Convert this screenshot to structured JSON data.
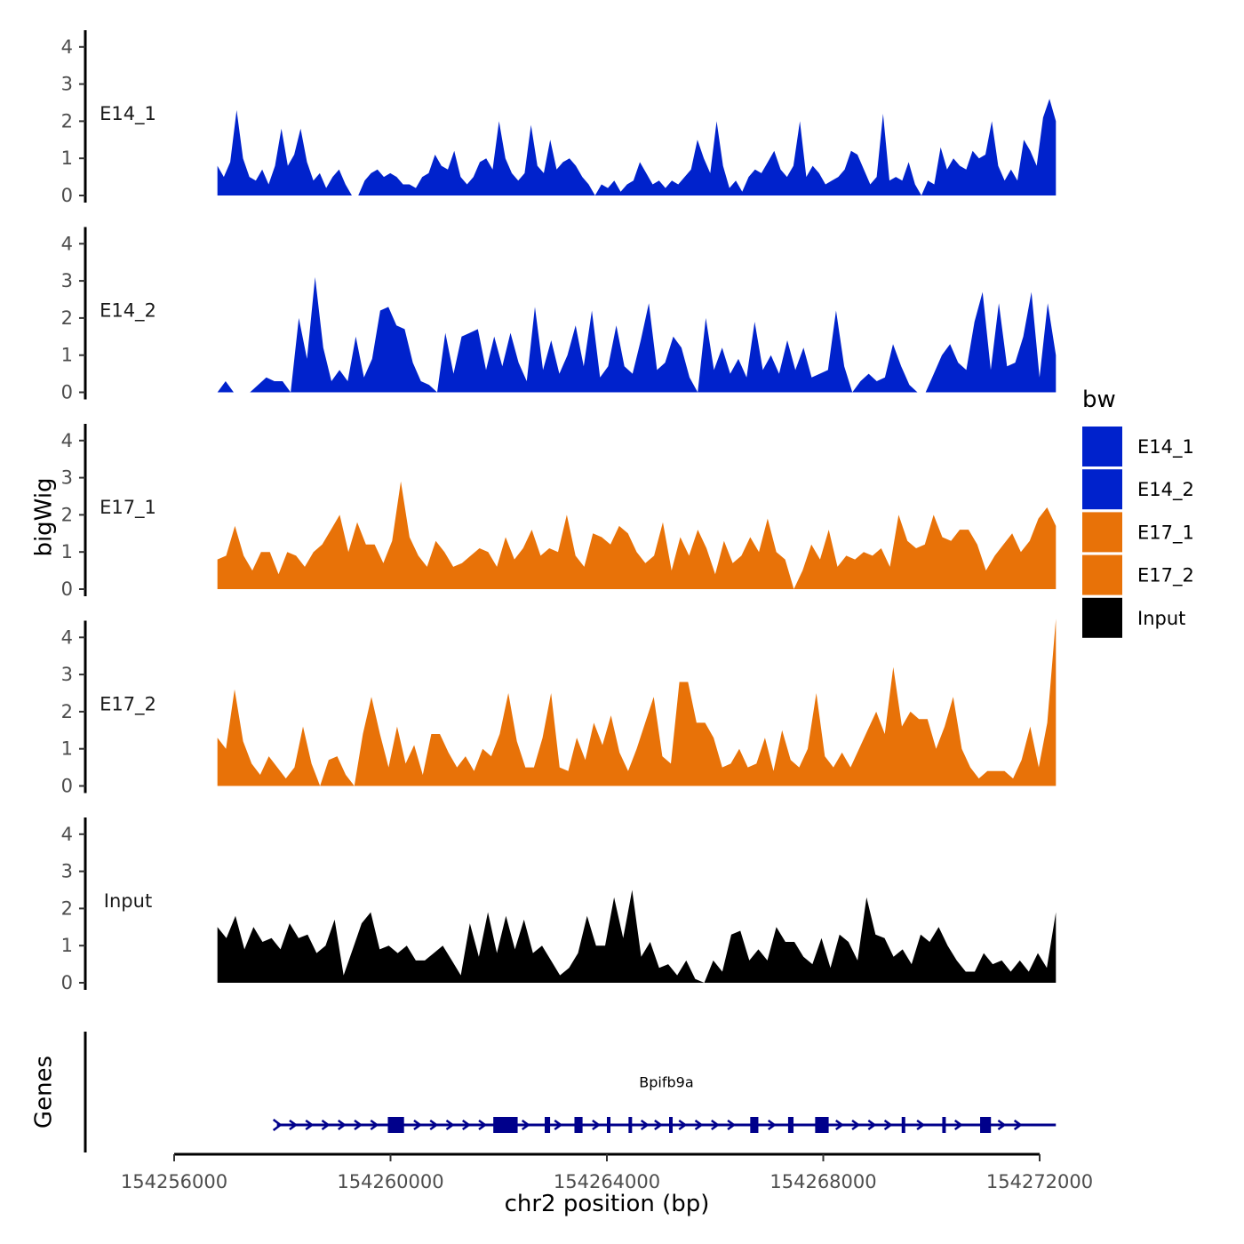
{
  "chart_data": {
    "type": "area",
    "ylabel": "bigWig",
    "xlabel": "chr2 position (bp)",
    "gene_track_label": "Genes",
    "xlim": [
      154256000,
      154272000
    ],
    "data_range": [
      154256800,
      154272300
    ],
    "x_ticks": [
      154256000,
      154260000,
      154264000,
      154268000,
      154272000
    ],
    "x_tick_labels": [
      "154256000",
      "154260000",
      "154264000",
      "154268000",
      "154272000"
    ],
    "ylim": [
      0,
      4.5
    ],
    "y_ticks": [
      0,
      1,
      2,
      3,
      4
    ],
    "y_tick_labels": [
      "0",
      "1",
      "2",
      "3",
      "4"
    ],
    "legend": {
      "title": "bw",
      "position": "right",
      "entries": [
        {
          "label": "E14_1",
          "color": "#0022CC"
        },
        {
          "label": "E14_2",
          "color": "#0022CC"
        },
        {
          "label": "E17_1",
          "color": "#E87208"
        },
        {
          "label": "E17_2",
          "color": "#E87208"
        },
        {
          "label": "Input",
          "color": "#000000"
        }
      ]
    },
    "series": [
      {
        "name": "E14_1",
        "color": "#0022CC",
        "values": [
          0.8,
          0.5,
          0.9,
          2.3,
          1.0,
          0.5,
          0.4,
          0.7,
          0.3,
          0.8,
          1.8,
          0.8,
          1.1,
          1.8,
          0.9,
          0.4,
          0.6,
          0.2,
          0.5,
          0.7,
          0.3,
          0.0,
          0.0,
          0.4,
          0.6,
          0.7,
          0.5,
          0.6,
          0.5,
          0.3,
          0.3,
          0.2,
          0.5,
          0.6,
          1.1,
          0.8,
          0.7,
          1.2,
          0.5,
          0.3,
          0.5,
          0.9,
          1.0,
          0.7,
          2.0,
          1.0,
          0.6,
          0.4,
          0.6,
          1.9,
          0.8,
          0.6,
          1.5,
          0.7,
          0.9,
          1.0,
          0.8,
          0.5,
          0.3,
          0.0,
          0.3,
          0.2,
          0.4,
          0.1,
          0.3,
          0.4,
          0.9,
          0.6,
          0.3,
          0.4,
          0.2,
          0.4,
          0.3,
          0.5,
          0.7,
          1.5,
          1.0,
          0.6,
          2.0,
          0.8,
          0.2,
          0.4,
          0.1,
          0.5,
          0.7,
          0.6,
          0.9,
          1.2,
          0.7,
          0.5,
          0.8,
          2.0,
          0.5,
          0.8,
          0.6,
          0.3,
          0.4,
          0.5,
          0.7,
          1.2,
          1.1,
          0.7,
          0.3,
          0.5,
          2.2,
          0.4,
          0.5,
          0.4,
          0.9,
          0.3,
          0.0,
          0.4,
          0.3,
          1.3,
          0.7,
          1.0,
          0.8,
          0.7,
          1.2,
          1.0,
          1.1,
          2.0,
          0.8,
          0.4,
          0.7,
          0.4,
          1.5,
          1.2,
          0.8,
          2.1,
          2.6,
          2.0
        ]
      },
      {
        "name": "E14_2",
        "color": "#0022CC",
        "values": [
          0.0,
          0.3,
          0.0,
          0.0,
          0.0,
          0.2,
          0.4,
          0.3,
          0.3,
          0.0,
          2.0,
          0.9,
          3.1,
          1.2,
          0.3,
          0.6,
          0.3,
          1.5,
          0.4,
          0.9,
          2.2,
          2.3,
          1.8,
          1.7,
          0.8,
          0.3,
          0.2,
          0.0,
          1.6,
          0.5,
          1.5,
          1.6,
          1.7,
          0.6,
          1.5,
          0.7,
          1.6,
          0.8,
          0.3,
          2.3,
          0.6,
          1.4,
          0.5,
          1.0,
          1.8,
          0.7,
          2.2,
          0.4,
          0.7,
          1.8,
          0.7,
          0.5,
          1.4,
          2.4,
          0.6,
          0.8,
          1.5,
          1.2,
          0.4,
          0.0,
          2.0,
          0.6,
          1.2,
          0.5,
          0.9,
          0.4,
          1.9,
          0.6,
          1.0,
          0.5,
          1.4,
          0.6,
          1.2,
          0.4,
          0.5,
          0.6,
          2.2,
          0.7,
          0.0,
          0.3,
          0.5,
          0.3,
          0.4,
          1.3,
          0.7,
          0.2,
          0.0,
          0.0,
          0.5,
          1.0,
          1.3,
          0.8,
          0.6,
          1.9,
          2.7,
          0.6,
          2.4,
          0.7,
          0.8,
          1.5,
          2.7,
          0.4,
          2.4,
          1.0
        ]
      },
      {
        "name": "E17_1",
        "color": "#E87208",
        "values": [
          0.8,
          0.9,
          1.7,
          0.9,
          0.5,
          1.0,
          1.0,
          0.4,
          1.0,
          0.9,
          0.6,
          1.0,
          1.2,
          1.6,
          2.0,
          1.0,
          1.8,
          1.2,
          1.2,
          0.7,
          1.3,
          2.9,
          1.4,
          0.9,
          0.6,
          1.3,
          1.0,
          0.6,
          0.7,
          0.9,
          1.1,
          1.0,
          0.6,
          1.4,
          0.8,
          1.1,
          1.6,
          0.9,
          1.1,
          1.0,
          2.0,
          0.9,
          0.6,
          1.5,
          1.4,
          1.2,
          1.7,
          1.5,
          1.0,
          0.7,
          0.9,
          1.8,
          0.5,
          1.4,
          0.9,
          1.6,
          1.1,
          0.4,
          1.3,
          0.7,
          0.9,
          1.4,
          1.0,
          1.9,
          1.0,
          0.8,
          0.0,
          0.5,
          1.2,
          0.8,
          1.6,
          0.6,
          0.9,
          0.8,
          1.0,
          0.9,
          1.1,
          0.6,
          2.0,
          1.3,
          1.1,
          1.2,
          2.0,
          1.4,
          1.3,
          1.6,
          1.6,
          1.2,
          0.5,
          0.9,
          1.2,
          1.5,
          1.0,
          1.3,
          1.9,
          2.2,
          1.7
        ]
      },
      {
        "name": "E17_2",
        "color": "#E87208",
        "values": [
          1.3,
          1.0,
          2.6,
          1.2,
          0.6,
          0.3,
          0.8,
          0.5,
          0.2,
          0.5,
          1.6,
          0.6,
          0.0,
          0.7,
          0.8,
          0.3,
          0.0,
          1.4,
          2.4,
          1.4,
          0.5,
          1.6,
          0.6,
          1.1,
          0.3,
          1.4,
          1.4,
          0.9,
          0.5,
          0.8,
          0.4,
          1.0,
          0.8,
          1.4,
          2.5,
          1.2,
          0.5,
          0.5,
          1.3,
          2.5,
          0.5,
          0.4,
          1.3,
          0.7,
          1.7,
          1.1,
          1.9,
          0.9,
          0.4,
          1.0,
          1.7,
          2.4,
          0.8,
          0.6,
          2.8,
          2.8,
          1.7,
          1.7,
          1.3,
          0.5,
          0.6,
          1.0,
          0.5,
          0.6,
          1.3,
          0.4,
          1.5,
          0.7,
          0.5,
          1.0,
          2.5,
          0.8,
          0.5,
          0.9,
          0.5,
          1.0,
          1.5,
          2.0,
          1.4,
          3.2,
          1.6,
          2.0,
          1.8,
          1.8,
          1.0,
          1.6,
          2.4,
          1.0,
          0.5,
          0.2,
          0.4,
          0.4,
          0.4,
          0.2,
          0.7,
          1.6,
          0.5,
          1.7,
          4.5
        ]
      },
      {
        "name": "Input",
        "color": "#000000",
        "values": [
          1.5,
          1.2,
          1.8,
          0.9,
          1.5,
          1.1,
          1.2,
          0.9,
          1.6,
          1.2,
          1.3,
          0.8,
          1.0,
          1.7,
          0.2,
          0.9,
          1.6,
          1.9,
          0.9,
          1.0,
          0.8,
          1.0,
          0.6,
          0.6,
          0.8,
          1.0,
          0.6,
          0.2,
          1.6,
          0.7,
          1.9,
          0.8,
          1.8,
          0.9,
          1.7,
          0.8,
          1.0,
          0.6,
          0.2,
          0.4,
          0.8,
          1.8,
          1.0,
          1.0,
          2.3,
          1.2,
          2.5,
          0.7,
          1.1,
          0.4,
          0.5,
          0.2,
          0.6,
          0.1,
          0.0,
          0.6,
          0.3,
          1.3,
          1.4,
          0.6,
          0.9,
          0.6,
          1.5,
          1.1,
          1.1,
          0.7,
          0.5,
          1.2,
          0.4,
          1.3,
          1.1,
          0.6,
          2.3,
          1.3,
          1.2,
          0.7,
          0.9,
          0.5,
          1.3,
          1.1,
          1.5,
          1.0,
          0.6,
          0.3,
          0.3,
          0.8,
          0.5,
          0.6,
          0.3,
          0.6,
          0.3,
          0.8,
          0.4,
          1.9
        ]
      }
    ],
    "genes": [
      {
        "name": "Bpifb9a",
        "strand": "+",
        "start": 154257900,
        "end": 154272300,
        "exons": [
          [
            154259950,
            154260250
          ],
          [
            154261900,
            154262350
          ],
          [
            154262850,
            154262950
          ],
          [
            154263400,
            154263550
          ],
          [
            154264000,
            154264050
          ],
          [
            154264400,
            154264450
          ],
          [
            154265150,
            154265200
          ],
          [
            154266650,
            154266800
          ],
          [
            154267350,
            154267450
          ],
          [
            154267850,
            154268100
          ],
          [
            154269450,
            154269500
          ],
          [
            154270200,
            154270250
          ],
          [
            154270900,
            154271100
          ]
        ],
        "arrows": [
          154258200,
          154258500,
          154258800,
          154259100,
          154259400,
          154259700,
          154260500,
          154260800,
          154261100,
          154261400,
          154261700,
          154262500,
          154263100,
          154263800,
          154264700,
          154264950,
          154265400,
          154265700,
          154266000,
          154266300,
          154267050,
          154268300,
          154268600,
          154268900,
          154269200,
          154269800,
          154270500,
          154271300,
          154271600
        ]
      }
    ]
  }
}
